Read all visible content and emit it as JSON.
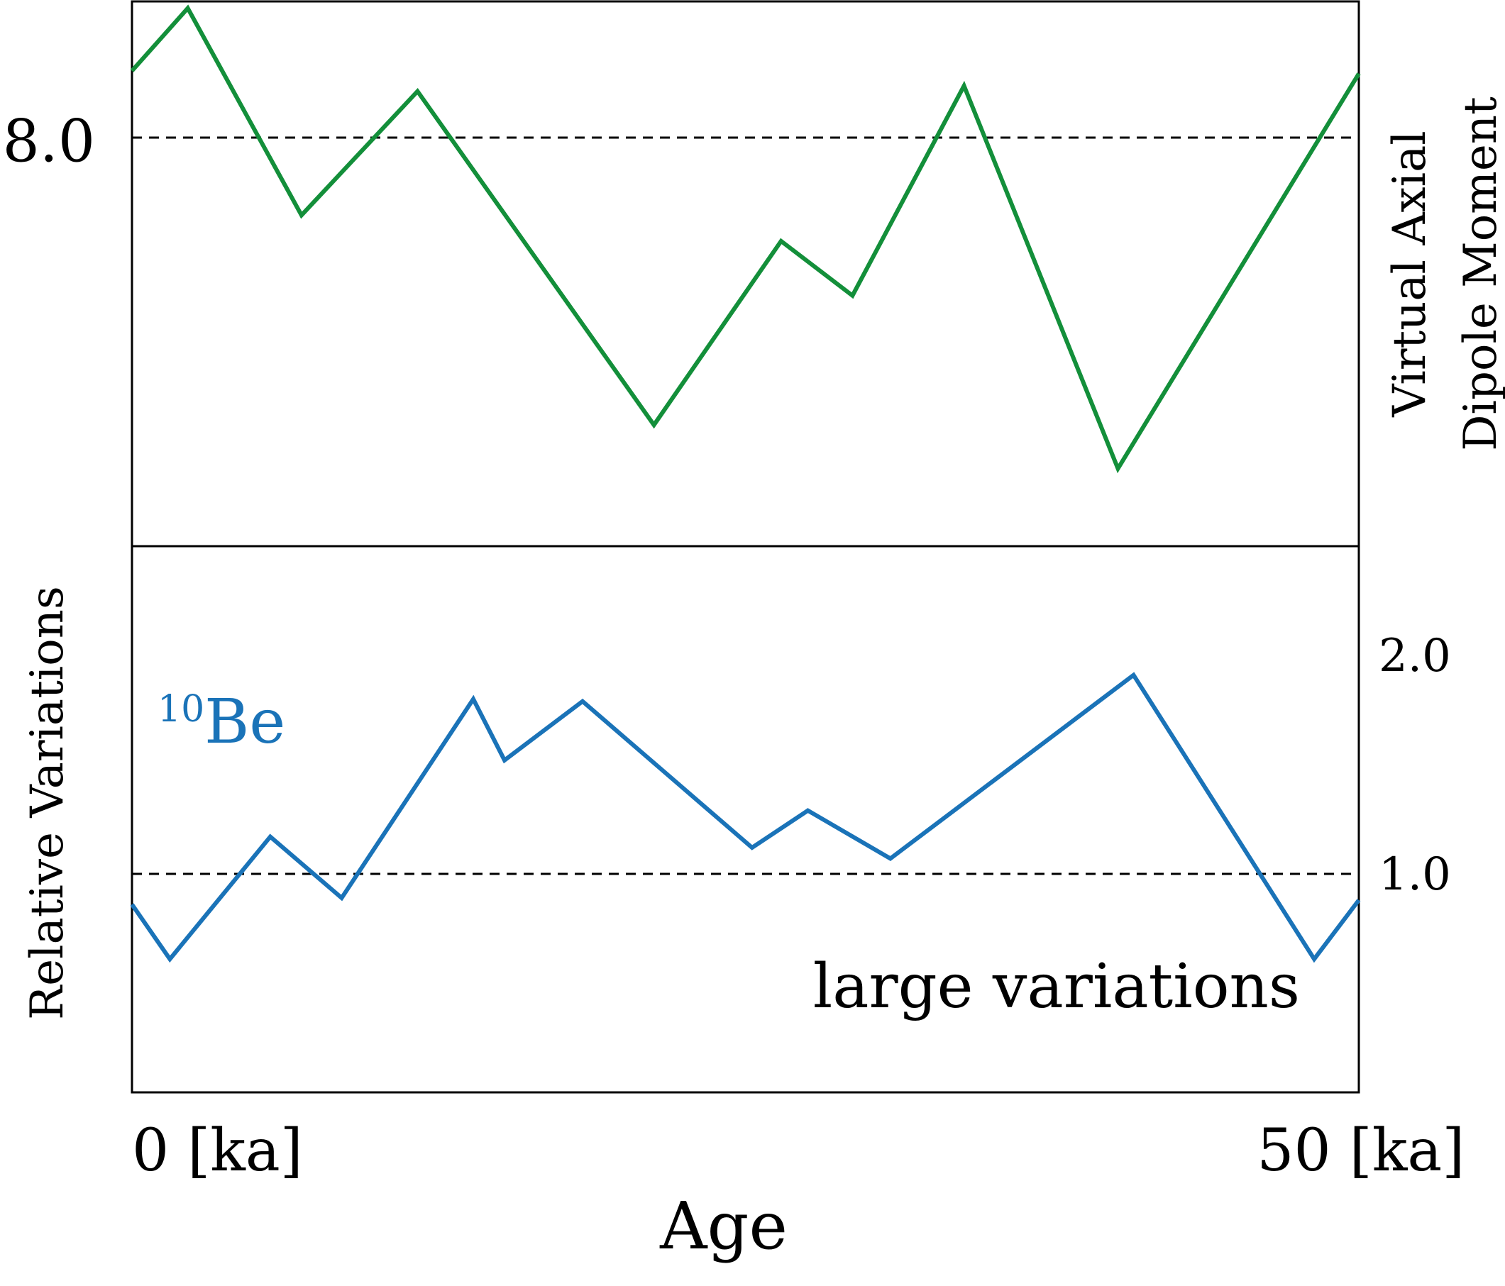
{
  "chart_data": [
    {
      "type": "line",
      "panel": "top",
      "y_axis_side": "left",
      "ylabel": "Virtual Axial\nDipole Moment",
      "ylabel_side": "right",
      "ylim": [
        5.0,
        9.0
      ],
      "yticks": [
        {
          "value": 8.0,
          "label": "8.0"
        }
      ],
      "reference_line": {
        "value": 8.0,
        "style": "dashed"
      },
      "xlim": [
        0,
        55
      ],
      "series": [
        {
          "color": "#138f3a",
          "x": [
            0,
            2.5,
            7.6,
            12.8,
            23.4,
            29.1,
            32.3,
            37.3,
            44.2,
            55
          ],
          "y": [
            8.49,
            8.95,
            7.43,
            8.34,
            5.89,
            7.24,
            6.84,
            8.38,
            5.57,
            8.47
          ]
        }
      ]
    },
    {
      "type": "line",
      "panel": "bottom",
      "y_axis_side": "right",
      "ylabel": "Relative Variations",
      "ylabel_side": "left",
      "ylim": [
        0.0,
        2.5
      ],
      "yticks": [
        {
          "value": 1.0,
          "label": "1.0"
        },
        {
          "value": 2.0,
          "label": "2.0"
        }
      ],
      "reference_line": {
        "value": 1.0,
        "style": "dashed"
      },
      "xlim": [
        0,
        55
      ],
      "xlabel": "Age",
      "xticks": [
        {
          "value": 0,
          "label": "0 [ka]"
        },
        {
          "value": 50,
          "label": "50 [ka]"
        }
      ],
      "series": [
        {
          "color": "#1a73b8",
          "x": [
            0,
            1.7,
            6.2,
            9.4,
            15.3,
            16.7,
            20.2,
            27.8,
            30.3,
            34.0,
            44.9,
            53.0,
            55
          ],
          "y": [
            0.86,
            0.61,
            1.17,
            0.89,
            1.8,
            1.52,
            1.79,
            1.12,
            1.29,
            1.07,
            1.91,
            0.61,
            0.88
          ]
        }
      ]
    }
  ],
  "annotations": {
    "be_label": {
      "superscript": "10",
      "text": "Be",
      "color": "#1a73b8"
    },
    "variation_label": {
      "text": "large variations",
      "color": "#c0253a"
    }
  },
  "axis_text": {
    "top_right_ylabel_line1": "Virtual Axial",
    "top_right_ylabel_line2": "Dipole Moment",
    "bottom_left_ylabel": "Relative Variations",
    "xlabel": "Age"
  }
}
